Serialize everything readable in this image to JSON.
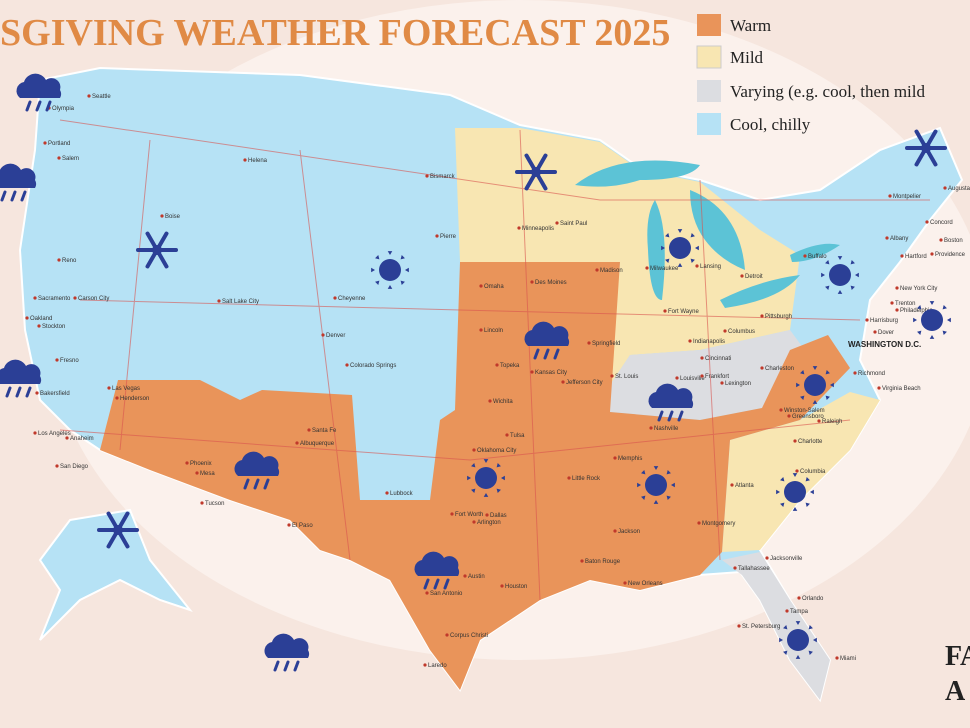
{
  "header": {
    "title": "SGIVING WEATHER FORECAST 2025"
  },
  "legend": [
    "Warm",
    "Mild",
    "Varying (e.g. cool, then mild",
    "Cool, chilly"
  ],
  "capital": "WASHINGTON D.C.",
  "logo": [
    "FA",
    "A"
  ],
  "cities": [
    "Olympia",
    "Seattle",
    "Portland",
    "Salem",
    "Helena",
    "Boise",
    "Bismarck",
    "Pierre",
    "Saint Paul",
    "Minneapolis",
    "Madison",
    "Milwaukee",
    "Lansing",
    "Detroit",
    "Buffalo",
    "Albany",
    "Montpelier",
    "Augusta",
    "Concord",
    "Boston",
    "Providence",
    "Hartford",
    "New York City",
    "Trenton",
    "Philadelphia",
    "Harrisburg",
    "Dover",
    "Richmond",
    "Virginia Beach",
    "Reno",
    "Carson City",
    "Sacramento",
    "Oakland",
    "Stockton",
    "Fresno",
    "Bakersfield",
    "Los Angeles",
    "Anaheim",
    "San Diego",
    "Salt Lake City",
    "Cheyenne",
    "Denver",
    "Colorado Springs",
    "Las Vegas",
    "Henderson",
    "Phoenix",
    "Mesa",
    "Tucson",
    "Santa Fe",
    "Albuquerque",
    "El Paso",
    "Lubbock",
    "Omaha",
    "Lincoln",
    "Des Moines",
    "Topeka",
    "Kansas City",
    "Wichita",
    "Springfield",
    "Jefferson City",
    "St. Louis",
    "Tulsa",
    "Oklahoma City",
    "Little Rock",
    "Memphis",
    "Nashville",
    "Louisville",
    "Frankfort",
    "Lexington",
    "Cincinnati",
    "Columbus",
    "Indianapolis",
    "Fort Wayne",
    "Pittsburgh",
    "Charleston",
    "Fort Worth",
    "Dallas",
    "Arlington",
    "Austin",
    "San Antonio",
    "Houston",
    "Corpus Christi",
    "Laredo",
    "Jackson",
    "Baton Rouge",
    "New Orleans",
    "Montgomery",
    "Atlanta",
    "Columbia",
    "Charlotte",
    "Greensboro",
    "Raleigh",
    "Winston-Salem",
    "Tallahassee",
    "Jacksonville",
    "Orlando",
    "Tampa",
    "St. Petersburg",
    "Miami"
  ]
}
